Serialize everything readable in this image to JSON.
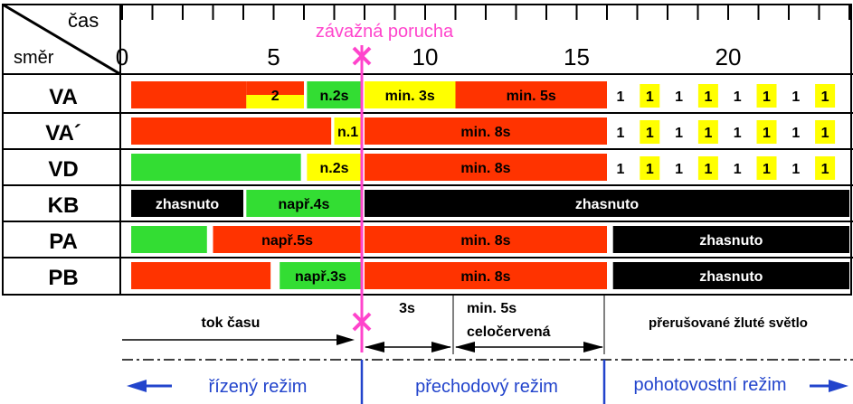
{
  "header": {
    "time_label": "čas",
    "direction_label": "směr",
    "fault_label": "závažná porucha",
    "tick_labels": [
      "0",
      "5",
      "10",
      "15",
      "20"
    ],
    "tick_values": [
      0,
      5,
      10,
      15,
      20
    ]
  },
  "colors": {
    "red": "#ff3300",
    "green": "#33dd33",
    "yellow": "#ffff00",
    "black": "#000000",
    "fault": "#ff44cc",
    "mode": "#2244cc"
  },
  "rows": [
    {
      "label": "VA",
      "segments": [
        {
          "start": 0.3,
          "end": 4.1,
          "color": "red",
          "text": ""
        },
        {
          "start": 4.1,
          "end": 6.0,
          "color": "red-yellow",
          "text": "2"
        },
        {
          "start": 6.1,
          "end": 7.9,
          "color": "green",
          "text": "n.2s"
        },
        {
          "start": 8.0,
          "end": 11.0,
          "color": "yellow",
          "text": "min. 3s"
        },
        {
          "start": 11.0,
          "end": 16.0,
          "color": "red",
          "text": "min. 5s"
        }
      ],
      "blinks": [
        "1",
        "1",
        "1",
        "1",
        "1",
        "1",
        "1",
        "1"
      ]
    },
    {
      "label": "VA´",
      "segments": [
        {
          "start": 0.3,
          "end": 6.9,
          "color": "red",
          "text": ""
        },
        {
          "start": 7.0,
          "end": 7.9,
          "color": "yellow",
          "text": "n.1"
        },
        {
          "start": 8.0,
          "end": 16.0,
          "color": "red",
          "text": "min. 8s"
        }
      ],
      "blinks": [
        "1",
        "1",
        "1",
        "1",
        "1",
        "1",
        "1",
        "1"
      ]
    },
    {
      "label": "VD",
      "segments": [
        {
          "start": 0.3,
          "end": 5.9,
          "color": "green",
          "text": ""
        },
        {
          "start": 6.1,
          "end": 7.9,
          "color": "yellow",
          "text": "n.2s"
        },
        {
          "start": 8.0,
          "end": 16.0,
          "color": "red",
          "text": "min. 8s"
        }
      ],
      "blinks": [
        "1",
        "1",
        "1",
        "1",
        "1",
        "1",
        "1",
        "1"
      ]
    },
    {
      "label": "KB",
      "segments": [
        {
          "start": 0.3,
          "end": 4.0,
          "color": "black",
          "text": "zhasnuto"
        },
        {
          "start": 4.1,
          "end": 7.9,
          "color": "green",
          "text": "např.4s"
        },
        {
          "start": 8.0,
          "end": 24.0,
          "color": "black",
          "text": "zhasnuto"
        }
      ],
      "blinks": []
    },
    {
      "label": "PA",
      "segments": [
        {
          "start": 0.3,
          "end": 2.8,
          "color": "green",
          "text": ""
        },
        {
          "start": 3.0,
          "end": 7.9,
          "color": "red",
          "text": "např.5s"
        },
        {
          "start": 8.0,
          "end": 16.0,
          "color": "red",
          "text": "min. 8s"
        },
        {
          "start": 16.2,
          "end": 24.0,
          "color": "black",
          "text": "zhasnuto"
        }
      ],
      "blinks": []
    },
    {
      "label": "PB",
      "segments": [
        {
          "start": 0.3,
          "end": 4.9,
          "color": "red",
          "text": ""
        },
        {
          "start": 5.2,
          "end": 7.9,
          "color": "green",
          "text": "např.3s"
        },
        {
          "start": 8.0,
          "end": 16.0,
          "color": "red",
          "text": "min. 8s"
        },
        {
          "start": 16.2,
          "end": 24.0,
          "color": "black",
          "text": "zhasnuto"
        }
      ],
      "blinks": []
    }
  ],
  "blink_pattern": [
    "white",
    "yellow",
    "white",
    "yellow",
    "white",
    "yellow",
    "white",
    "yellow"
  ],
  "bottom": {
    "time_flow": "tok času",
    "transition_3s": "3s",
    "all_red_line1": "min. 5s",
    "all_red_line2": "celočervená",
    "flashing_yellow": "přerušované žluté světlo",
    "mode_controlled": "řízený režim",
    "mode_transition": "přechodový režim",
    "mode_standby": "pohotovostní režim"
  }
}
